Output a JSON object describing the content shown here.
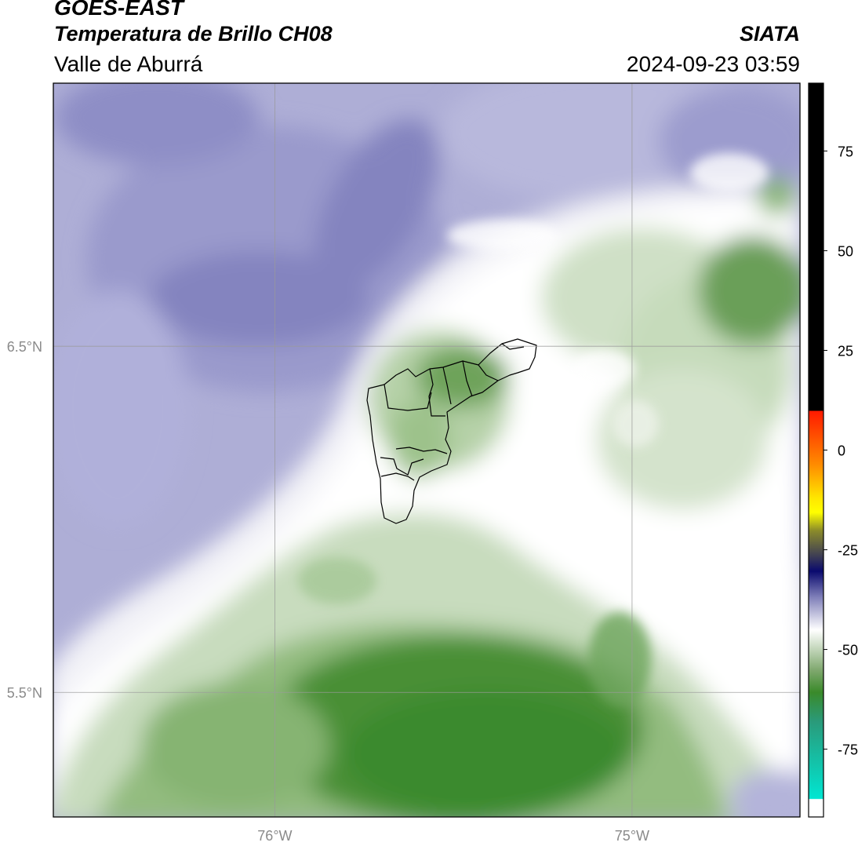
{
  "header": {
    "line1": "GOES-EAST",
    "line2": "Temperatura de Brillo CH08",
    "line3": "Valle de Aburrá",
    "source": "SIATA",
    "datetime": "2024-09-23 03:59"
  },
  "map": {
    "lon_range": [
      -76.62,
      -74.53
    ],
    "lat_range": [
      5.14,
      7.26
    ],
    "gridlines": {
      "lon": [
        -76,
        -75
      ],
      "lat": [
        6.5,
        5.5
      ]
    },
    "lon_labels": [
      "76°W",
      "75°W"
    ],
    "lat_labels": [
      "6.5°N",
      "5.5°N"
    ]
  },
  "colorbar": {
    "ticks": [
      75,
      50,
      25,
      0,
      -25,
      -50,
      -75
    ],
    "tick_labels": [
      "75",
      "50",
      "25",
      "0",
      "-25",
      "-50",
      "-75"
    ],
    "range": [
      -92,
      92
    ],
    "colors": {
      "black": "#000000",
      "red": "#ff1a00",
      "orange": "#ff8c00",
      "yellow": "#ffff00",
      "olive": "#8a8a2a",
      "navy": "#0a0a6e",
      "lavender": "#7e7eb8",
      "white": "#ffffff",
      "green": "#3a8a2a",
      "teal": "#00e6d2"
    }
  }
}
